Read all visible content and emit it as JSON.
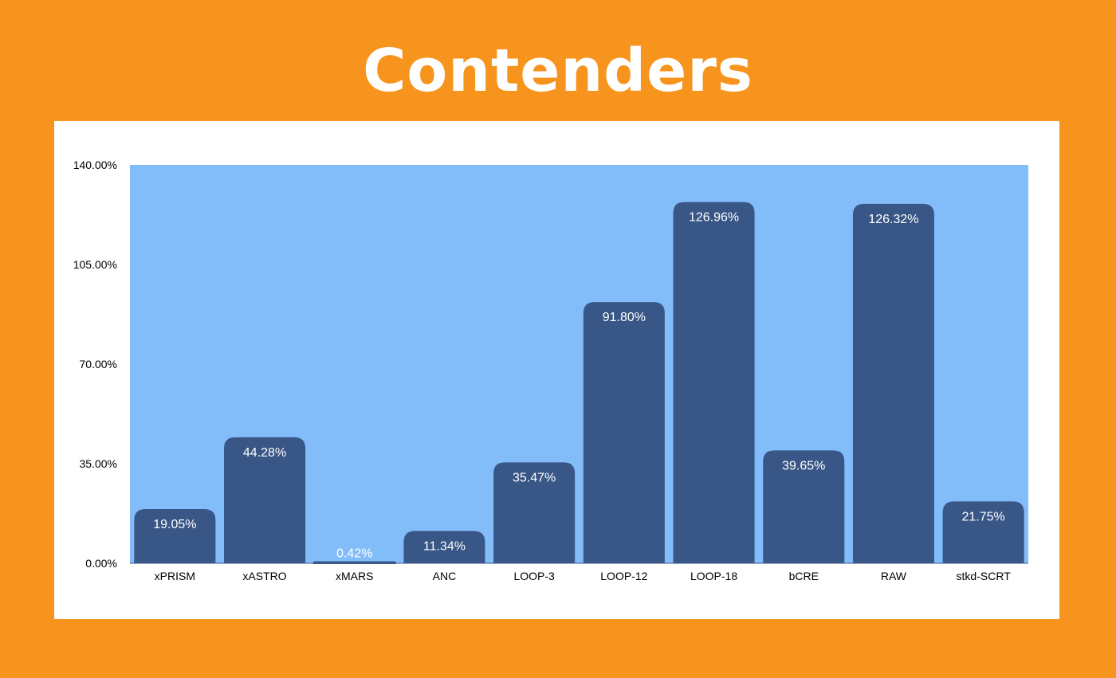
{
  "title": "Contenders",
  "colors": {
    "background": "#f7941d",
    "card": "#ffffff",
    "plot_area": "#82bcf9",
    "bar": "#385686",
    "label_text": "#ffffff"
  },
  "chart_data": {
    "type": "bar",
    "title": "",
    "xlabel": "",
    "ylabel": "",
    "categories": [
      "xPRISM",
      "xASTRO",
      "xMARS",
      "ANC",
      "LOOP-3",
      "LOOP-12",
      "LOOP-18",
      "bCRE",
      "RAW",
      "stkd-SCRT"
    ],
    "values": [
      19.05,
      44.28,
      0.42,
      11.34,
      35.47,
      91.8,
      126.96,
      39.65,
      126.32,
      21.75
    ],
    "value_labels": [
      "19.05%",
      "44.28%",
      "0.42%",
      "11.34%",
      "35.47%",
      "91.80%",
      "126.96%",
      "39.65%",
      "126.32%",
      "21.75%"
    ],
    "ylim": [
      0,
      140
    ],
    "yticks": [
      0,
      35,
      70,
      105,
      140
    ],
    "ytick_labels": [
      "0.00%",
      "35.00%",
      "70.00%",
      "105.00%",
      "140.00%"
    ],
    "grid": false,
    "legend": "none"
  }
}
